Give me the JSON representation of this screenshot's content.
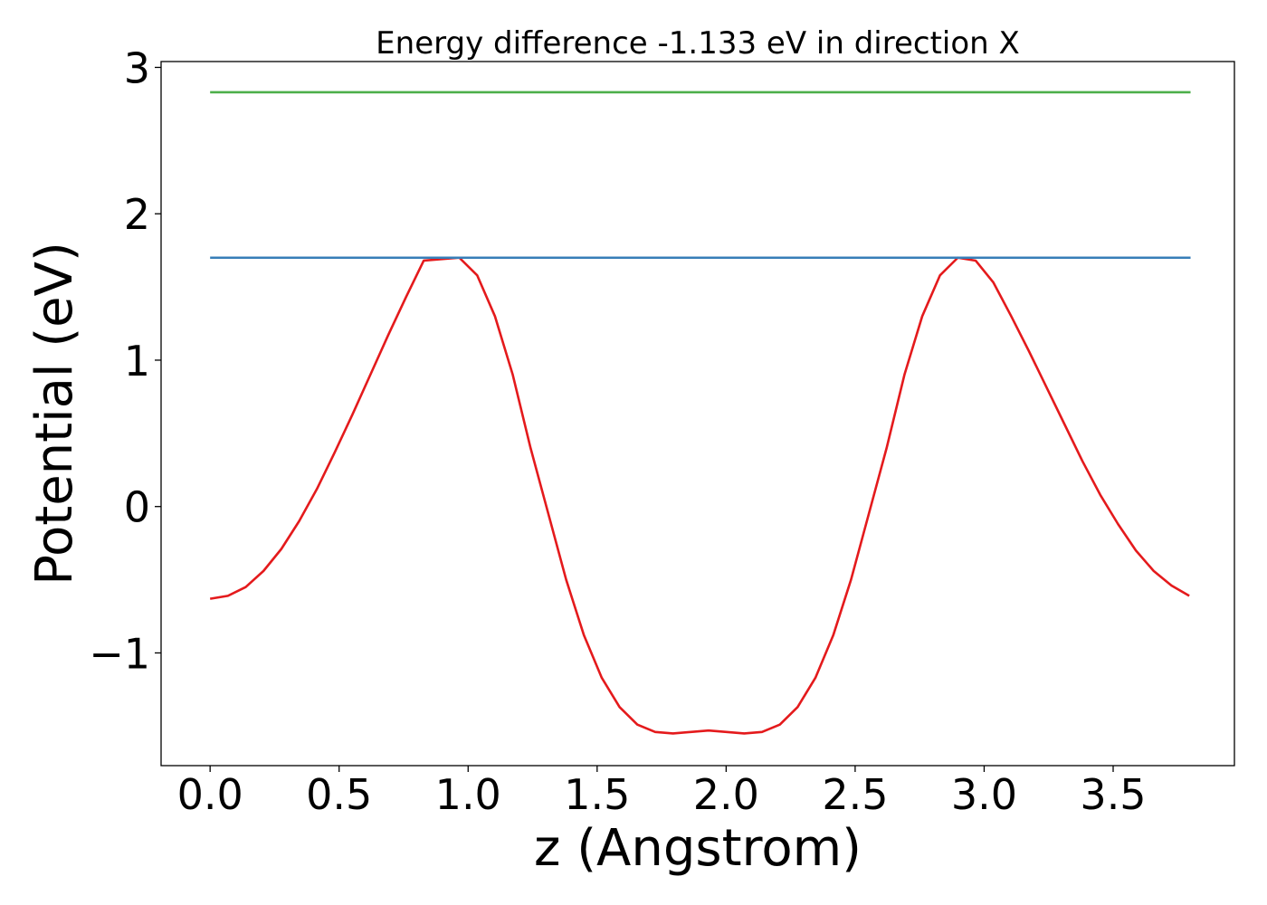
{
  "chart_data": {
    "type": "line",
    "title": "Energy difference -1.133 eV in direction X",
    "xlabel": "z (Angstrom)",
    "ylabel": "Potential (eV)",
    "xlim": [
      -0.19,
      3.97
    ],
    "ylim": [
      -1.77,
      3.04
    ],
    "xticks": [
      0.0,
      0.5,
      1.0,
      1.5,
      2.0,
      2.5,
      3.0,
      3.5
    ],
    "xtick_labels": [
      "0.0",
      "0.5",
      "1.0",
      "1.5",
      "2.0",
      "2.5",
      "3.0",
      "3.5"
    ],
    "yticks": [
      -1,
      0,
      1,
      2,
      3
    ],
    "ytick_labels": [
      "−1",
      "0",
      "1",
      "2",
      "3"
    ],
    "grid": false,
    "series": [
      {
        "color": "#e41a1c",
        "x": [
          0.0,
          0.069,
          0.138,
          0.207,
          0.276,
          0.345,
          0.414,
          0.483,
          0.552,
          0.621,
          0.69,
          0.759,
          0.828,
          0.897,
          0.966,
          1.035,
          1.104,
          1.173,
          1.242,
          1.311,
          1.38,
          1.449,
          1.518,
          1.587,
          1.656,
          1.725,
          1.794,
          1.863,
          1.932,
          2.001,
          2.07,
          2.139,
          2.208,
          2.277,
          2.346,
          2.415,
          2.484,
          2.553,
          2.622,
          2.691,
          2.76,
          2.829,
          2.898,
          2.967,
          3.036,
          3.105,
          3.174,
          3.243,
          3.312,
          3.381,
          3.45,
          3.519,
          3.588,
          3.657,
          3.726,
          3.795
        ],
        "y": [
          -0.63,
          -0.61,
          -0.55,
          -0.44,
          -0.29,
          -0.1,
          0.12,
          0.37,
          0.63,
          0.9,
          1.17,
          1.43,
          1.68,
          1.69,
          1.7,
          1.58,
          1.3,
          0.9,
          0.4,
          -0.05,
          -0.5,
          -0.88,
          -1.17,
          -1.37,
          -1.49,
          -1.54,
          -1.55,
          -1.54,
          -1.53,
          -1.54,
          -1.55,
          -1.54,
          -1.49,
          -1.37,
          -1.17,
          -0.88,
          -0.5,
          -0.05,
          0.4,
          0.9,
          1.3,
          1.58,
          1.7,
          1.68,
          1.53,
          1.3,
          1.06,
          0.81,
          0.56,
          0.31,
          0.08,
          -0.12,
          -0.3,
          -0.44,
          -0.54,
          -0.61
        ]
      },
      {
        "color": "#377eb8",
        "x": [
          0.0,
          3.8
        ],
        "y": [
          1.7,
          1.7
        ]
      },
      {
        "color": "#4daf4a",
        "x": [
          0.0,
          3.8
        ],
        "y": [
          2.83,
          2.83
        ]
      }
    ]
  }
}
